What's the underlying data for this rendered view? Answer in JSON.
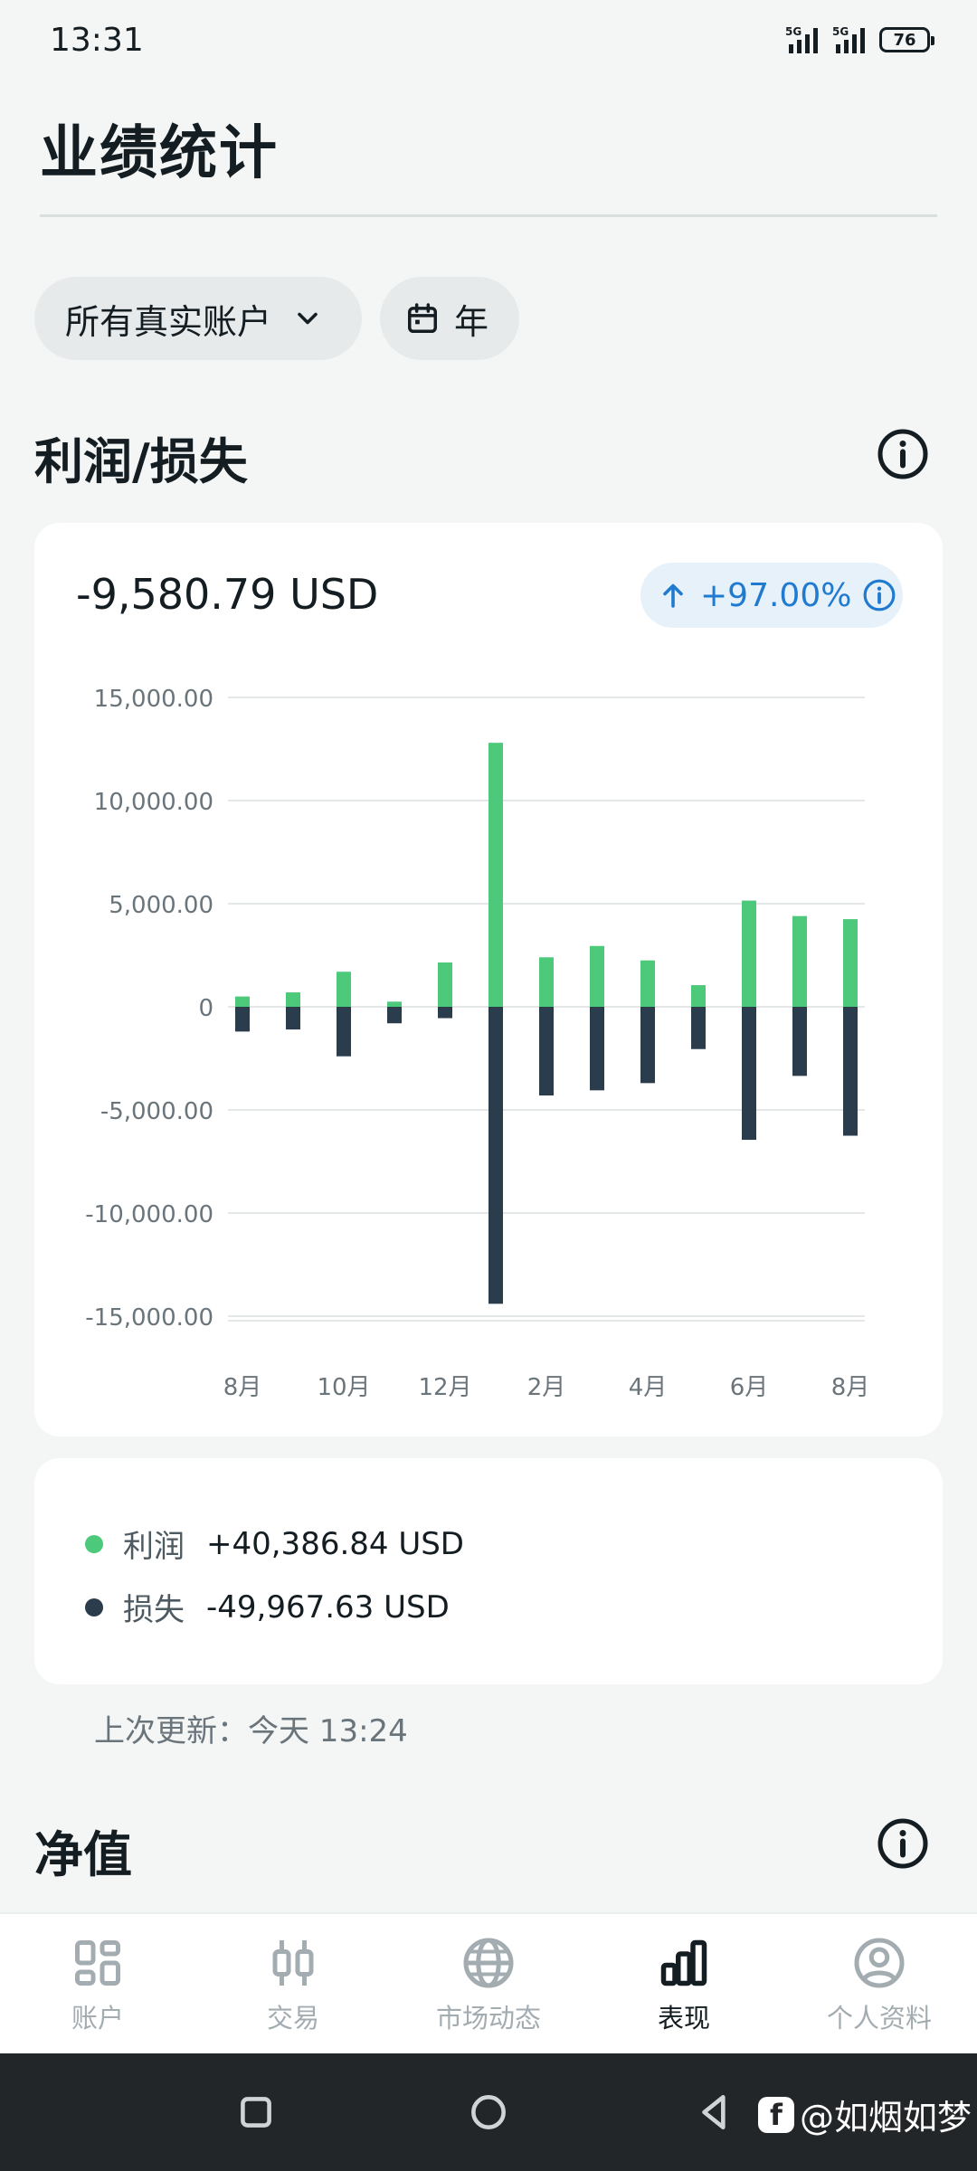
{
  "status_bar": {
    "time": "13:31",
    "signal_1": "5G",
    "signal_2": "5G",
    "battery": "76"
  },
  "page": {
    "title": "业绩统计"
  },
  "filters": {
    "account": "所有真实账户",
    "period": "年"
  },
  "pnl_section": {
    "title": "利润/损失",
    "total": "-9,580.79 USD",
    "change": "+97.00%",
    "colors": {
      "profit": "#4cc97a",
      "loss": "#2b3d4c",
      "accent": "#1f7ad0"
    }
  },
  "chart_data": {
    "type": "bar",
    "stacked": true,
    "title": "",
    "xlabel": "",
    "ylabel": "",
    "ylim": [
      -15000,
      15000
    ],
    "yticks": [
      15000,
      10000,
      5000,
      0,
      -5000,
      -10000,
      -15000
    ],
    "ytick_labels": [
      "15,000.00",
      "10,000.00",
      "5,000.00",
      "0",
      "-5,000.00",
      "-10,000.00",
      "-15,000.00"
    ],
    "categories": [
      "8月",
      "9月",
      "10月",
      "11月",
      "12月",
      "1月",
      "2月",
      "3月",
      "4月",
      "5月",
      "6月",
      "7月",
      "8月"
    ],
    "x_tick_labels": [
      "8月",
      "",
      "10月",
      "",
      "12月",
      "",
      "2月",
      "",
      "4月",
      "",
      "6月",
      "",
      "8月"
    ],
    "series": [
      {
        "name": "利润",
        "color": "#4cc97a",
        "values": [
          500,
          700,
          1700,
          250,
          2150,
          12800,
          2400,
          2950,
          2250,
          1050,
          5150,
          4400,
          4250
        ]
      },
      {
        "name": "损失",
        "color": "#2b3d4c",
        "values": [
          -1200,
          -1100,
          -2400,
          -800,
          -550,
          -14400,
          -4300,
          -4050,
          -3700,
          -2050,
          -6450,
          -3350,
          -6250
        ]
      }
    ],
    "grid": true,
    "legend": "below"
  },
  "legend": [
    {
      "label": "利润",
      "value": "+40,386.84 USD"
    },
    {
      "label": "损失",
      "value": "-49,967.63 USD"
    }
  ],
  "last_updated": "上次更新：今天 13:24",
  "equity_section": {
    "title": "净值"
  },
  "bottom_nav": [
    {
      "label": "账户",
      "icon": "grid-icon"
    },
    {
      "label": "交易",
      "icon": "candles-icon"
    },
    {
      "label": "市场动态",
      "icon": "globe-icon"
    },
    {
      "label": "表现",
      "icon": "bar-chart-icon",
      "active": true
    },
    {
      "label": "个人资料",
      "icon": "user-circle-icon"
    }
  ],
  "watermark": {
    "logo": "f",
    "text": "@如烟如梦"
  }
}
